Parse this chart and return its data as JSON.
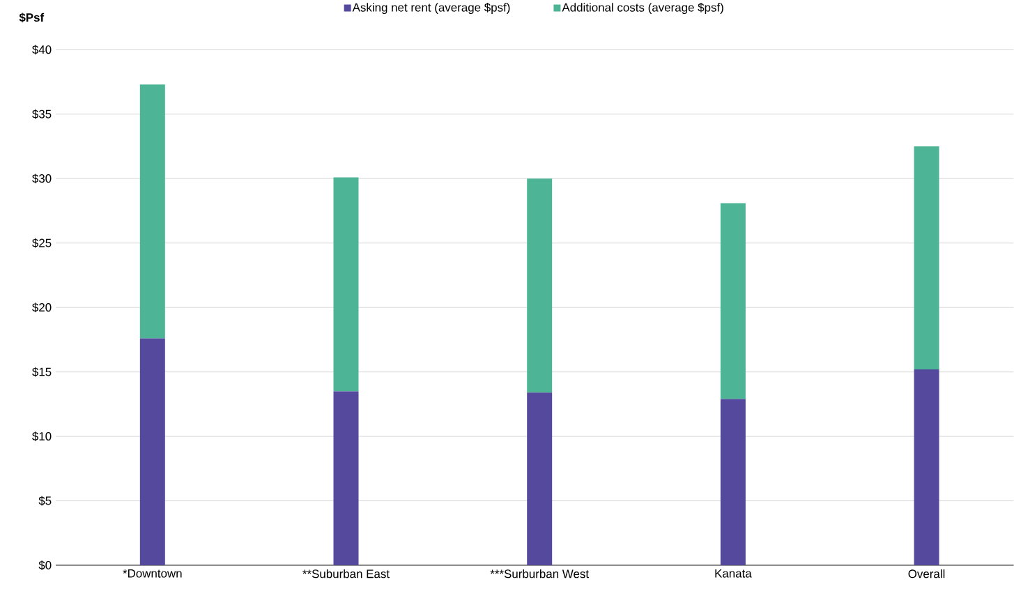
{
  "chart_data": {
    "type": "bar",
    "stacked": true,
    "ylabel": "$Psf",
    "categories": [
      "*Downtown",
      "**Suburban East",
      "***Surburban West",
      "Kanata",
      "Overall"
    ],
    "series": [
      {
        "name": "Asking net rent (average $psf)",
        "color": "#55499e",
        "values": [
          17.6,
          13.5,
          13.4,
          12.9,
          15.2
        ]
      },
      {
        "name": "Additional costs (average $psf)",
        "color": "#4db595",
        "values": [
          19.7,
          16.6,
          16.6,
          15.2,
          17.3
        ]
      }
    ],
    "ylim": [
      0,
      40
    ],
    "yticks": [
      {
        "value": 0,
        "label": "$0"
      },
      {
        "value": 5,
        "label": "$5"
      },
      {
        "value": 10,
        "label": "$10"
      },
      {
        "value": 15,
        "label": "$15"
      },
      {
        "value": 20,
        "label": "$20"
      },
      {
        "value": 25,
        "label": "$25"
      },
      {
        "value": 30,
        "label": "$30"
      },
      {
        "value": 35,
        "label": "$35"
      },
      {
        "value": 40,
        "label": "$40"
      }
    ],
    "grid": "y",
    "legend": "top"
  }
}
